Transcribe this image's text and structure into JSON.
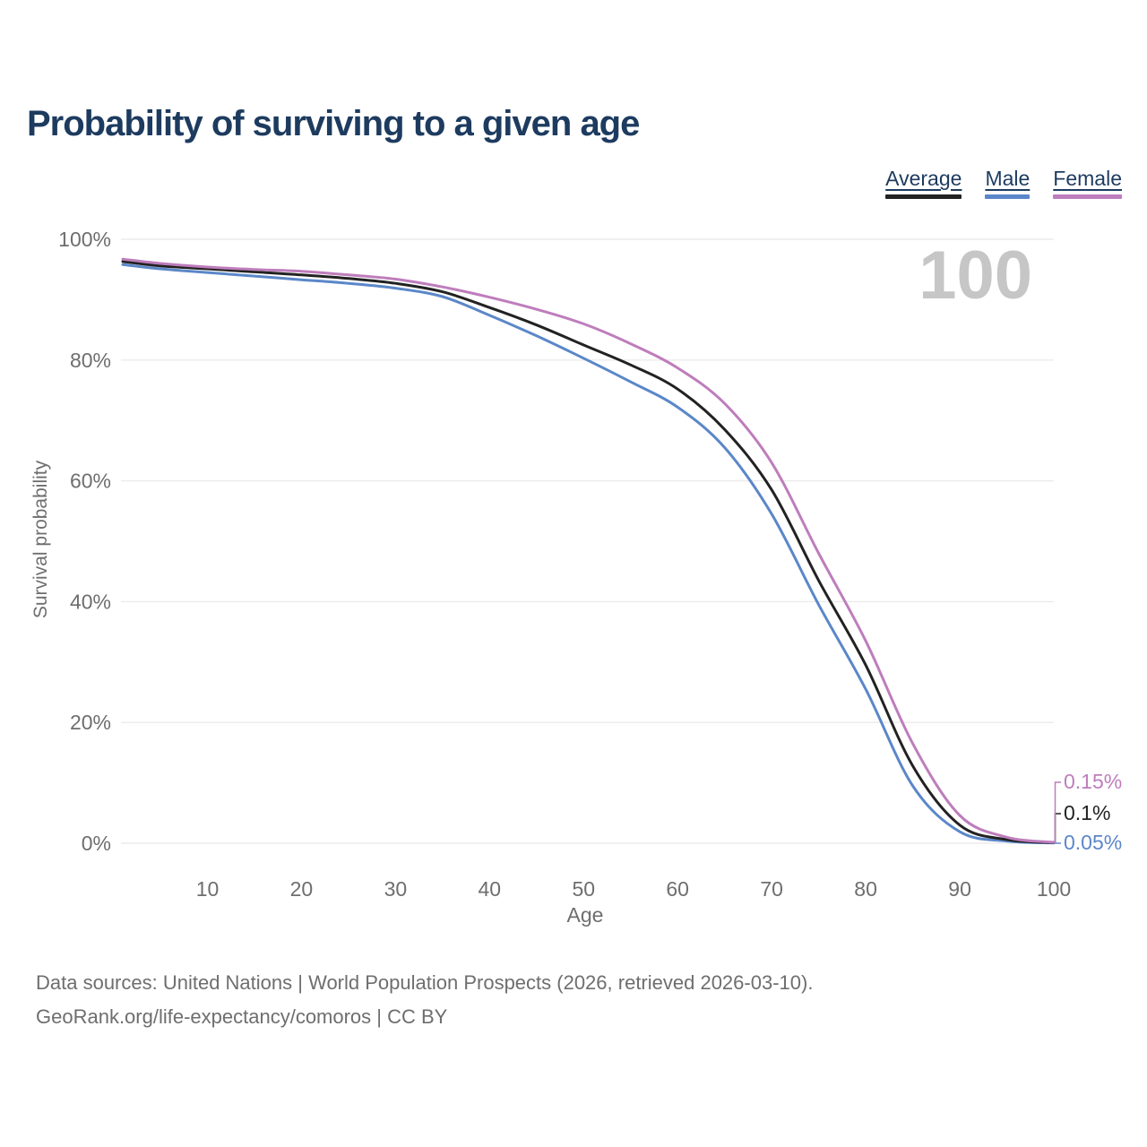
{
  "header": {
    "title": "Probability of surviving to a given age"
  },
  "legend": {
    "items": [
      {
        "label": "Average",
        "color": "#222222"
      },
      {
        "label": "Male",
        "color": "#5b87c9"
      },
      {
        "label": "Female",
        "color": "#be7dbc"
      }
    ]
  },
  "watermark": "100",
  "chart_data": {
    "type": "line",
    "title": "Probability of surviving to a given age",
    "xlabel": "Age",
    "ylabel": "Survival probability",
    "xlim": [
      1,
      100
    ],
    "ylim": [
      0,
      100
    ],
    "grid": "horizontal",
    "legend_position": "top-right",
    "x_ticks": [
      10,
      20,
      30,
      40,
      50,
      60,
      70,
      80,
      90,
      100
    ],
    "x_tick_labels": [
      "10",
      "20",
      "30",
      "40",
      "50",
      "60",
      "70",
      "80",
      "90",
      "100"
    ],
    "y_ticks": [
      0,
      20,
      40,
      60,
      80,
      100
    ],
    "y_tick_labels": [
      "0%",
      "20%",
      "40%",
      "60%",
      "80%",
      "100%"
    ],
    "x": [
      1,
      5,
      10,
      15,
      20,
      25,
      30,
      35,
      40,
      45,
      50,
      55,
      60,
      65,
      70,
      75,
      80,
      85,
      90,
      95,
      100
    ],
    "series": [
      {
        "name": "Average",
        "color": "#222222",
        "end_label": "0.1%",
        "values": [
          96.3,
          95.6,
          95.1,
          94.6,
          94.1,
          93.5,
          92.7,
          91.3,
          88.7,
          85.8,
          82.5,
          79.2,
          75.2,
          68.5,
          58.5,
          43.5,
          29.5,
          12.8,
          3.0,
          0.6,
          0.1
        ]
      },
      {
        "name": "Male",
        "color": "#5b87c9",
        "end_label": "0.05%",
        "values": [
          95.8,
          95.1,
          94.5,
          93.9,
          93.3,
          92.7,
          91.9,
          90.5,
          87.4,
          84.0,
          80.3,
          76.4,
          72.2,
          65.5,
          54.5,
          39.5,
          25.5,
          9.5,
          1.9,
          0.35,
          0.05
        ]
      },
      {
        "name": "Female",
        "color": "#be7dbc",
        "end_label": "0.15%",
        "values": [
          96.7,
          96.0,
          95.4,
          95.0,
          94.7,
          94.1,
          93.4,
          92.1,
          90.4,
          88.4,
          86.0,
          82.7,
          78.7,
          72.8,
          63.0,
          48.0,
          33.5,
          16.5,
          4.6,
          1.0,
          0.15
        ]
      }
    ]
  },
  "footer": {
    "line1": "Data sources: United Nations | World Population Prospects (2026, retrieved 2026-03-10).",
    "line2": "GeoRank.org/life-expectancy/comoros | CC BY"
  }
}
